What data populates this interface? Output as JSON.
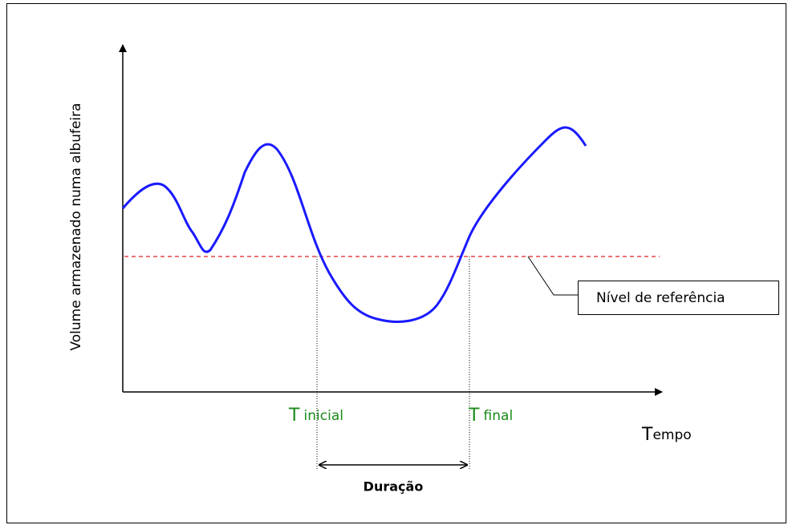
{
  "diagram": {
    "y_axis_label": "Volume armazenado numa albufeira",
    "x_axis_label": [
      "T",
      "empo"
    ],
    "reference_label": "Nível de referência",
    "t_initial": [
      "T",
      "inicial"
    ],
    "t_final": [
      "T",
      "final"
    ],
    "duration_label": "Duração"
  }
}
